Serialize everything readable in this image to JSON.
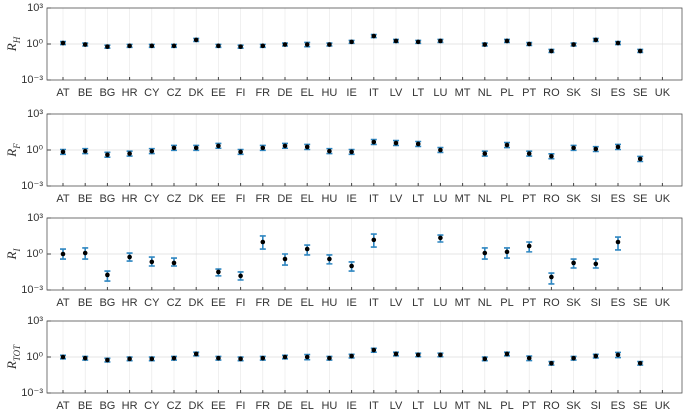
{
  "chart_data": [
    {
      "type": "errorbar",
      "ylabel": "R",
      "ylabel_sub": "H",
      "categories": [
        "AT",
        "BE",
        "BG",
        "HR",
        "CY",
        "CZ",
        "DK",
        "EE",
        "FI",
        "FR",
        "DE",
        "EL",
        "HU",
        "IE",
        "IT",
        "LV",
        "LT",
        "LU",
        "MT",
        "NL",
        "PL",
        "PT",
        "RO",
        "SK",
        "SI",
        "ES",
        "SE",
        "UK"
      ],
      "values": [
        1.2,
        0.9,
        0.6,
        0.7,
        0.7,
        0.7,
        2.2,
        0.7,
        0.6,
        0.7,
        0.9,
        0.9,
        0.9,
        1.5,
        4.6,
        1.8,
        1.5,
        1.8,
        null,
        0.9,
        1.8,
        1.0,
        0.26,
        0.9,
        2.2,
        1.2,
        0.26,
        null
      ],
      "lower": [
        0.9,
        0.68,
        0.45,
        0.53,
        0.53,
        0.53,
        1.65,
        0.53,
        0.45,
        0.53,
        0.68,
        0.6,
        0.68,
        1.13,
        3.45,
        1.35,
        1.13,
        1.35,
        null,
        0.68,
        1.35,
        0.75,
        0.2,
        0.68,
        1.65,
        0.9,
        0.2,
        null
      ],
      "upper": [
        1.6,
        1.2,
        0.8,
        0.93,
        0.93,
        0.93,
        2.9,
        0.93,
        0.8,
        0.93,
        1.2,
        1.35,
        1.2,
        2.0,
        6.1,
        2.4,
        2.0,
        2.4,
        null,
        1.2,
        2.4,
        1.33,
        0.35,
        1.2,
        2.9,
        1.6,
        0.35,
        null
      ],
      "ylim": [
        0.001,
        1000
      ],
      "yticks": [
        {
          "value": 0.001,
          "label": "10⁻³"
        },
        {
          "value": 1,
          "label": "10⁰"
        },
        {
          "value": 1000,
          "label": "10³"
        }
      ],
      "log_y": true,
      "grid": true,
      "color": "#000000",
      "error_color": "#2e86c1"
    },
    {
      "type": "errorbar",
      "ylabel": "R",
      "ylabel_sub": "F",
      "categories": [
        "AT",
        "BE",
        "BG",
        "HR",
        "CY",
        "CZ",
        "DK",
        "EE",
        "FI",
        "FR",
        "DE",
        "EL",
        "HU",
        "IE",
        "IT",
        "LV",
        "LT",
        "LU",
        "MT",
        "NL",
        "PL",
        "PT",
        "RO",
        "SK",
        "SI",
        "ES",
        "SE",
        "UK"
      ],
      "values": [
        0.7,
        0.8,
        0.4,
        0.5,
        0.8,
        1.5,
        1.5,
        2.2,
        0.7,
        1.5,
        2.2,
        1.8,
        0.8,
        0.7,
        4.6,
        3.8,
        3.2,
        1.0,
        null,
        0.5,
        2.6,
        0.5,
        0.3,
        1.5,
        1.2,
        1.8,
        0.18,
        null
      ],
      "lower": [
        0.44,
        0.5,
        0.25,
        0.31,
        0.5,
        0.94,
        0.94,
        1.4,
        0.44,
        0.94,
        1.4,
        1.1,
        0.5,
        0.44,
        2.9,
        2.4,
        2.0,
        0.63,
        null,
        0.31,
        1.6,
        0.31,
        0.19,
        0.94,
        0.75,
        1.1,
        0.11,
        null
      ],
      "upper": [
        1.1,
        1.3,
        0.64,
        0.8,
        1.3,
        2.4,
        2.4,
        3.5,
        1.1,
        2.4,
        3.5,
        2.9,
        1.3,
        1.1,
        7.4,
        6.1,
        5.1,
        1.6,
        null,
        0.8,
        4.2,
        0.8,
        0.48,
        2.4,
        1.9,
        2.9,
        0.29,
        null
      ],
      "ylim": [
        0.001,
        1000
      ],
      "yticks": [
        {
          "value": 0.001,
          "label": "10⁻³"
        },
        {
          "value": 1,
          "label": "10⁰"
        },
        {
          "value": 1000,
          "label": "10³"
        }
      ],
      "log_y": true,
      "grid": true,
      "color": "#000000",
      "error_color": "#2e86c1"
    },
    {
      "type": "errorbar",
      "ylabel": "R",
      "ylabel_sub": "I",
      "categories": [
        "AT",
        "BE",
        "BG",
        "HR",
        "CY",
        "CZ",
        "DK",
        "EE",
        "FI",
        "FR",
        "DE",
        "EL",
        "HU",
        "IE",
        "IT",
        "LV",
        "LT",
        "LU",
        "MT",
        "NL",
        "PL",
        "PT",
        "RO",
        "SK",
        "SI",
        "ES",
        "SE",
        "UK"
      ],
      "values": [
        1.0,
        1.2,
        0.018,
        0.56,
        0.22,
        0.18,
        null,
        0.032,
        0.015,
        10,
        0.38,
        2.6,
        0.38,
        0.1,
        15,
        null,
        null,
        22,
        null,
        1.2,
        1.5,
        4.6,
        0.012,
        0.18,
        0.15,
        10,
        null,
        null
      ],
      "lower": [
        0.38,
        0.38,
        0.0056,
        0.26,
        0.1,
        0.1,
        null,
        0.015,
        0.0068,
        2.6,
        0.12,
        0.83,
        0.15,
        0.038,
        3.8,
        null,
        null,
        10,
        null,
        0.38,
        0.46,
        1.5,
        0.0032,
        0.068,
        0.068,
        2.2,
        null,
        null
      ],
      "upper": [
        2.6,
        3.2,
        0.038,
        1.2,
        0.56,
        0.46,
        null,
        0.056,
        0.032,
        32,
        1.0,
        5.6,
        0.83,
        0.22,
        46,
        null,
        null,
        38,
        null,
        3.2,
        3.2,
        10,
        0.026,
        0.38,
        0.38,
        26,
        null,
        null
      ],
      "ylim": [
        0.001,
        1000
      ],
      "yticks": [
        {
          "value": 0.001,
          "label": "10⁻³"
        },
        {
          "value": 1,
          "label": "10⁰"
        },
        {
          "value": 1000,
          "label": "10³"
        }
      ],
      "log_y": true,
      "grid": true,
      "color": "#000000",
      "error_color": "#2e86c1"
    },
    {
      "type": "errorbar",
      "ylabel": "R",
      "ylabel_sub": "TOT",
      "categories": [
        "AT",
        "BE",
        "BG",
        "HR",
        "CY",
        "CZ",
        "DK",
        "EE",
        "FI",
        "FR",
        "DE",
        "EL",
        "HU",
        "IE",
        "IT",
        "LV",
        "LT",
        "LU",
        "MT",
        "NL",
        "PL",
        "PT",
        "RO",
        "SK",
        "SI",
        "ES",
        "SE",
        "UK"
      ],
      "values": [
        1.0,
        0.8,
        0.56,
        0.7,
        0.7,
        0.8,
        1.8,
        0.8,
        0.7,
        0.8,
        1.0,
        1.0,
        0.8,
        1.2,
        3.8,
        1.8,
        1.5,
        1.5,
        null,
        0.7,
        1.8,
        0.8,
        0.3,
        0.8,
        1.2,
        1.5,
        0.3,
        null
      ],
      "lower": [
        0.7,
        0.56,
        0.39,
        0.49,
        0.49,
        0.56,
        1.26,
        0.56,
        0.49,
        0.56,
        0.7,
        0.6,
        0.56,
        0.84,
        2.5,
        1.26,
        1.05,
        1.05,
        null,
        0.49,
        1.26,
        0.5,
        0.21,
        0.56,
        0.84,
        0.9,
        0.21,
        null
      ],
      "upper": [
        1.4,
        1.12,
        0.78,
        0.98,
        0.98,
        1.12,
        2.5,
        1.12,
        0.98,
        1.12,
        1.4,
        1.6,
        1.12,
        1.68,
        5.3,
        2.5,
        2.1,
        2.1,
        null,
        0.98,
        2.5,
        1.2,
        0.42,
        1.12,
        1.68,
        2.4,
        0.42,
        null
      ],
      "ylim": [
        0.001,
        1000
      ],
      "yticks": [
        {
          "value": 0.001,
          "label": "10⁻³"
        },
        {
          "value": 1,
          "label": "10⁰"
        },
        {
          "value": 1000,
          "label": "10³"
        }
      ],
      "log_y": true,
      "grid": true,
      "color": "#000000",
      "error_color": "#2e86c1"
    }
  ]
}
